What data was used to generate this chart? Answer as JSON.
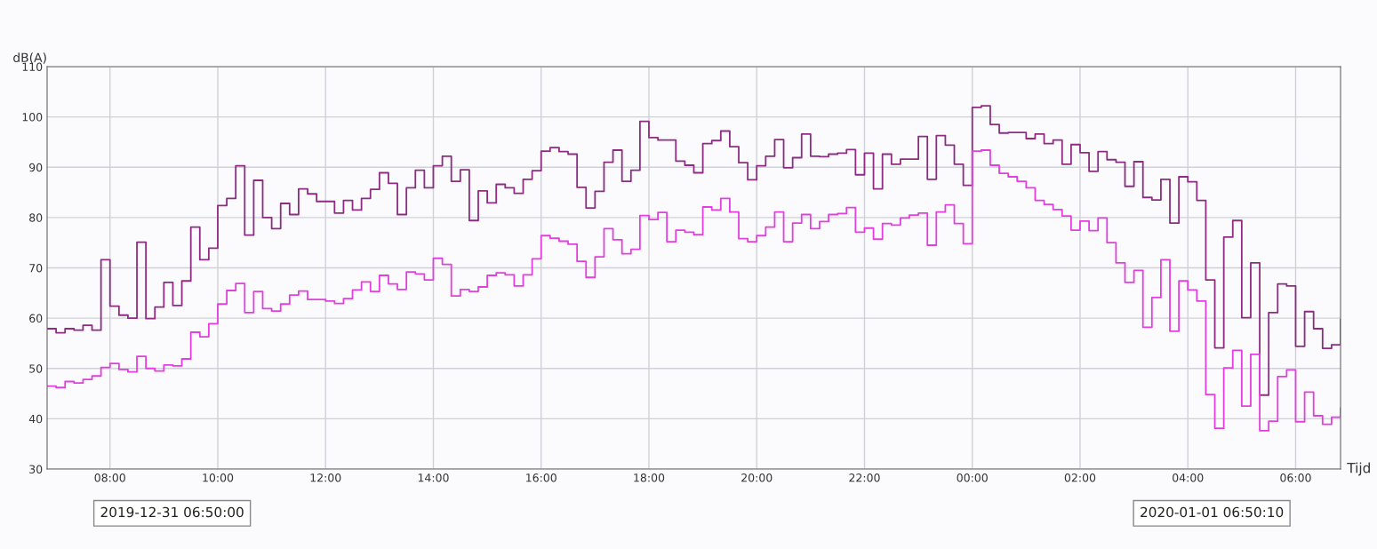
{
  "chart_data": {
    "type": "step",
    "ylabel": "dB(A)",
    "xlabel": "Tijd",
    "annotations": [
      "2019-12-31 06:50:00",
      "2020-01-01 06:50:10"
    ],
    "x": [
      "2019-12-31T06:50",
      "2019-12-31T07:00",
      "2019-12-31T07:10",
      "2019-12-31T07:20",
      "2019-12-31T07:30",
      "2019-12-31T07:40",
      "2019-12-31T07:50",
      "2019-12-31T08:00",
      "2019-12-31T08:10",
      "2019-12-31T08:20",
      "2019-12-31T08:30",
      "2019-12-31T08:40",
      "2019-12-31T08:50",
      "2019-12-31T09:00",
      "2019-12-31T09:10",
      "2019-12-31T09:20",
      "2019-12-31T09:30",
      "2019-12-31T09:40",
      "2019-12-31T09:50",
      "2019-12-31T10:00",
      "2019-12-31T10:10",
      "2019-12-31T10:20",
      "2019-12-31T10:30",
      "2019-12-31T10:40",
      "2019-12-31T10:50",
      "2019-12-31T11:00",
      "2019-12-31T11:10",
      "2019-12-31T11:20",
      "2019-12-31T11:30",
      "2019-12-31T11:40",
      "2019-12-31T11:50",
      "2019-12-31T12:00",
      "2019-12-31T12:10",
      "2019-12-31T12:20",
      "2019-12-31T12:30",
      "2019-12-31T12:40",
      "2019-12-31T12:50",
      "2019-12-31T13:00",
      "2019-12-31T13:10",
      "2019-12-31T13:20",
      "2019-12-31T13:30",
      "2019-12-31T13:40",
      "2019-12-31T13:50",
      "2019-12-31T14:00",
      "2019-12-31T14:10",
      "2019-12-31T14:20",
      "2019-12-31T14:30",
      "2019-12-31T14:40",
      "2019-12-31T14:50",
      "2019-12-31T15:00",
      "2019-12-31T15:10",
      "2019-12-31T15:20",
      "2019-12-31T15:30",
      "2019-12-31T15:40",
      "2019-12-31T15:50",
      "2019-12-31T16:00",
      "2019-12-31T16:10",
      "2019-12-31T16:20",
      "2019-12-31T16:30",
      "2019-12-31T16:40",
      "2019-12-31T16:50",
      "2019-12-31T17:00",
      "2019-12-31T17:10",
      "2019-12-31T17:20",
      "2019-12-31T17:30",
      "2019-12-31T17:40",
      "2019-12-31T17:50",
      "2019-12-31T18:00",
      "2019-12-31T18:10",
      "2019-12-31T18:20",
      "2019-12-31T18:30",
      "2019-12-31T18:40",
      "2019-12-31T18:50",
      "2019-12-31T19:00",
      "2019-12-31T19:10",
      "2019-12-31T19:20",
      "2019-12-31T19:30",
      "2019-12-31T19:40",
      "2019-12-31T19:50",
      "2019-12-31T20:00",
      "2019-12-31T20:10",
      "2019-12-31T20:20",
      "2019-12-31T20:30",
      "2019-12-31T20:40",
      "2019-12-31T20:50",
      "2019-12-31T21:00",
      "2019-12-31T21:10",
      "2019-12-31T21:20",
      "2019-12-31T21:30",
      "2019-12-31T21:40",
      "2019-12-31T21:50",
      "2019-12-31T22:00",
      "2019-12-31T22:10",
      "2019-12-31T22:20",
      "2019-12-31T22:30",
      "2019-12-31T22:40",
      "2019-12-31T22:50",
      "2019-12-31T23:00",
      "2019-12-31T23:10",
      "2019-12-31T23:20",
      "2019-12-31T23:30",
      "2019-12-31T23:40",
      "2019-12-31T23:50",
      "2020-01-01T00:00",
      "2020-01-01T00:10",
      "2020-01-01T00:20",
      "2020-01-01T00:30",
      "2020-01-01T00:40",
      "2020-01-01T00:50",
      "2020-01-01T01:00",
      "2020-01-01T01:10",
      "2020-01-01T01:20",
      "2020-01-01T01:30",
      "2020-01-01T01:40",
      "2020-01-01T01:50",
      "2020-01-01T02:00",
      "2020-01-01T02:10",
      "2020-01-01T02:20",
      "2020-01-01T02:30",
      "2020-01-01T02:40",
      "2020-01-01T02:50",
      "2020-01-01T03:00",
      "2020-01-01T03:10",
      "2020-01-01T03:20",
      "2020-01-01T03:30",
      "2020-01-01T03:40",
      "2020-01-01T03:50",
      "2020-01-01T04:00",
      "2020-01-01T04:10",
      "2020-01-01T04:20",
      "2020-01-01T04:30",
      "2020-01-01T04:40",
      "2020-01-01T04:50",
      "2020-01-01T05:00",
      "2020-01-01T05:10",
      "2020-01-01T05:20",
      "2020-01-01T05:30",
      "2020-01-01T05:40",
      "2020-01-01T05:50",
      "2020-01-01T06:00",
      "2020-01-01T06:10",
      "2020-01-01T06:20",
      "2020-01-01T06:30",
      "2020-01-01T06:40",
      "2020-01-01T06:50"
    ],
    "series": [
      {
        "color": "#8e2c84",
        "values": [
          57.9,
          57.1,
          57.9,
          57.6,
          58.6,
          57.6,
          71.6,
          62.4,
          60.6,
          60.0,
          75.1,
          59.9,
          62.2,
          67.1,
          62.5,
          67.4,
          78.1,
          71.6,
          73.9,
          82.4,
          83.8,
          90.3,
          76.5,
          87.4,
          80.0,
          77.8,
          82.8,
          80.6,
          85.7,
          84.7,
          83.2,
          83.2,
          80.9,
          83.4,
          81.5,
          83.8,
          85.6,
          88.9,
          86.8,
          80.6,
          85.9,
          89.4,
          85.9,
          90.3,
          92.2,
          87.2,
          89.5,
          79.4,
          85.3,
          82.9,
          86.6,
          85.9,
          84.8,
          87.6,
          89.3,
          93.2,
          93.9,
          93.1,
          92.6,
          86.0,
          81.9,
          85.2,
          91.0,
          93.4,
          87.2,
          89.4,
          99.1,
          95.9,
          95.4,
          95.4,
          91.2,
          90.4,
          88.9,
          94.7,
          95.3,
          97.2,
          94.1,
          90.9,
          87.5,
          90.3,
          92.2,
          95.5,
          89.9,
          91.9,
          96.6,
          92.2,
          92.1,
          92.6,
          92.8,
          93.5,
          88.5,
          92.8,
          85.7,
          92.6,
          90.6,
          91.6,
          91.6,
          96.1,
          87.6,
          96.3,
          94.4,
          90.6,
          86.4,
          101.9,
          102.2,
          98.5,
          96.8,
          96.9,
          96.9,
          95.7,
          96.6,
          94.7,
          95.4,
          90.6,
          94.5,
          92.9,
          89.2,
          93.1,
          91.5,
          91.0,
          86.2,
          91.1,
          84.0,
          83.5,
          87.6,
          78.9,
          88.1,
          87.1,
          83.4,
          67.6,
          54.1,
          76.1,
          79.4,
          60.1,
          71.0,
          44.7,
          61.1,
          66.8,
          66.4,
          54.4,
          61.3,
          57.9,
          54.0,
          54.7,
          59.7
        ]
      },
      {
        "color": "#e33fe0",
        "values": [
          46.5,
          46.2,
          47.4,
          47.1,
          47.8,
          48.5,
          50.2,
          51.0,
          49.8,
          49.3,
          52.4,
          50.0,
          49.5,
          50.7,
          50.5,
          51.9,
          57.2,
          56.3,
          58.9,
          62.8,
          65.5,
          66.9,
          61.1,
          65.3,
          61.9,
          61.4,
          62.8,
          64.6,
          65.4,
          63.7,
          63.7,
          63.4,
          62.9,
          63.9,
          65.6,
          67.2,
          65.3,
          68.5,
          66.8,
          65.7,
          69.2,
          68.8,
          67.6,
          71.9,
          70.7,
          64.4,
          65.7,
          65.3,
          66.2,
          68.5,
          69.0,
          68.6,
          66.4,
          68.6,
          71.8,
          76.4,
          75.9,
          75.3,
          74.7,
          71.3,
          68.1,
          72.2,
          77.8,
          75.6,
          72.8,
          73.7,
          80.4,
          79.6,
          81.0,
          75.2,
          77.5,
          77.1,
          76.6,
          82.1,
          81.5,
          83.8,
          81.1,
          75.8,
          75.2,
          76.4,
          78.1,
          81.1,
          75.2,
          78.9,
          80.6,
          77.8,
          79.2,
          80.6,
          80.8,
          82.0,
          77.1,
          77.9,
          75.7,
          78.8,
          78.5,
          79.9,
          80.5,
          80.9,
          74.5,
          81.1,
          82.5,
          78.8,
          74.8,
          93.2,
          93.4,
          90.4,
          88.8,
          88.1,
          87.2,
          85.9,
          83.4,
          82.6,
          81.6,
          80.3,
          77.5,
          79.3,
          77.4,
          79.9,
          75.0,
          71.0,
          67.1,
          69.5,
          58.2,
          64.1,
          71.6,
          57.4,
          67.4,
          65.6,
          63.4,
          44.8,
          38.1,
          50.1,
          53.6,
          42.5,
          52.8,
          37.6,
          39.5,
          48.4,
          49.7,
          39.4,
          45.3,
          40.6,
          38.9,
          40.3,
          42.1
        ]
      }
    ],
    "xlim": [
      "2019-12-31T06:50",
      "2020-01-01T06:50"
    ],
    "xticks": [
      {
        "value": "2019-12-31T08:00",
        "label": "08:00"
      },
      {
        "value": "2019-12-31T10:00",
        "label": "10:00"
      },
      {
        "value": "2019-12-31T12:00",
        "label": "12:00"
      },
      {
        "value": "2019-12-31T14:00",
        "label": "14:00"
      },
      {
        "value": "2019-12-31T16:00",
        "label": "16:00"
      },
      {
        "value": "2019-12-31T18:00",
        "label": "18:00"
      },
      {
        "value": "2019-12-31T20:00",
        "label": "20:00"
      },
      {
        "value": "2019-12-31T22:00",
        "label": "22:00"
      },
      {
        "value": "2020-01-01T00:00",
        "label": "00:00"
      },
      {
        "value": "2020-01-01T02:00",
        "label": "02:00"
      },
      {
        "value": "2020-01-01T04:00",
        "label": "04:00"
      },
      {
        "value": "2020-01-01T06:00",
        "label": "06:00"
      }
    ],
    "ylim": [
      30,
      110
    ],
    "yticks": [
      30,
      40,
      50,
      60,
      70,
      80,
      90,
      100,
      110
    ],
    "grid": true,
    "line_style": "solid"
  }
}
